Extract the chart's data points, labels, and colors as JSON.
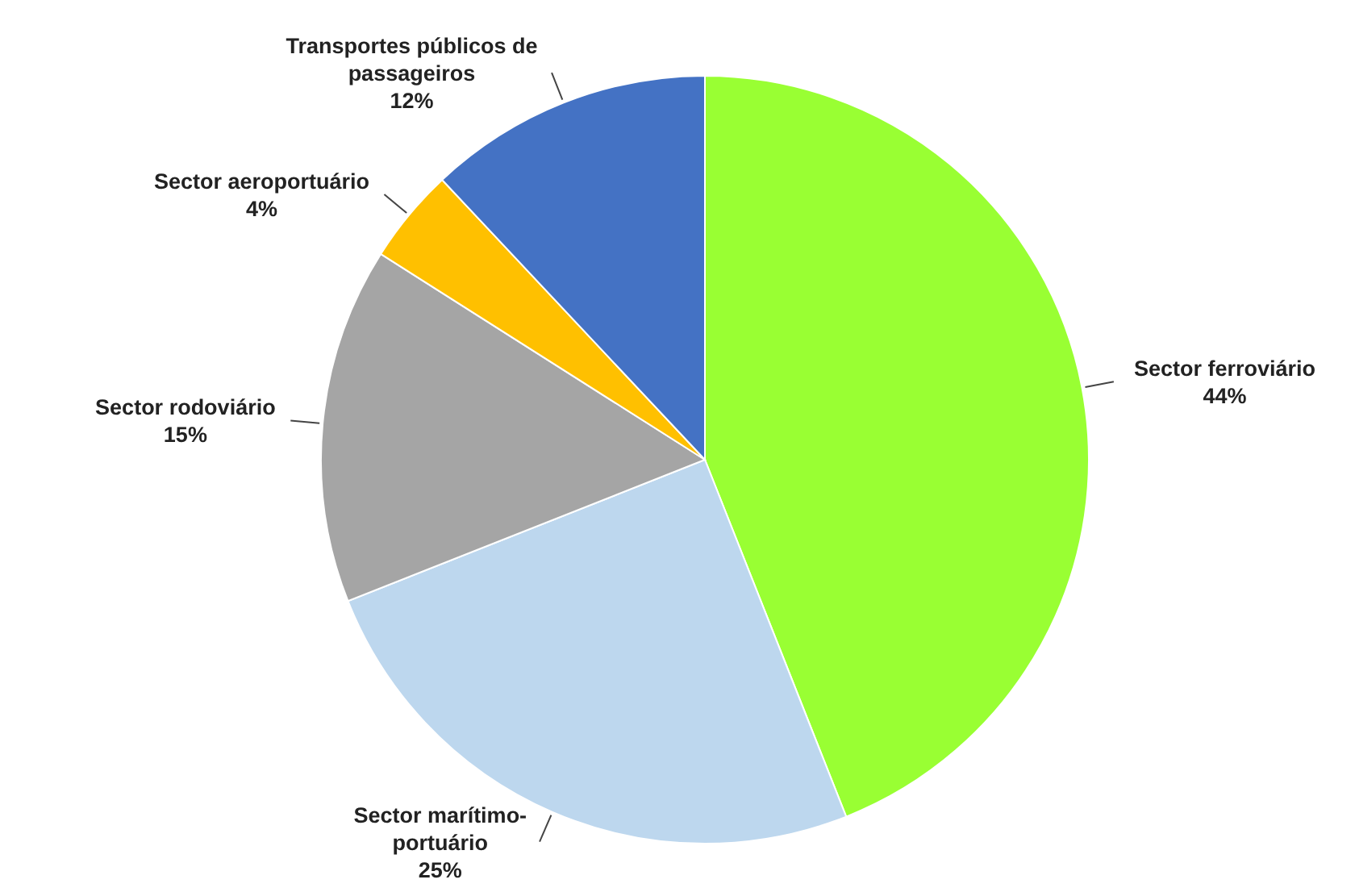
{
  "chart_data": {
    "type": "pie",
    "categories": [
      "Sector ferroviário",
      "Sector marítimo-portuário",
      "Sector rodoviário",
      "Sector aeroportuário",
      "Transportes públicos de passageiros"
    ],
    "values": [
      44,
      25,
      15,
      4,
      12
    ],
    "value_labels": [
      "44%",
      "25%",
      "15%",
      "4%",
      "12%"
    ],
    "colors": [
      "#99ff33",
      "#bdd7ee",
      "#a5a5a5",
      "#ffc000",
      "#4472c4"
    ]
  }
}
